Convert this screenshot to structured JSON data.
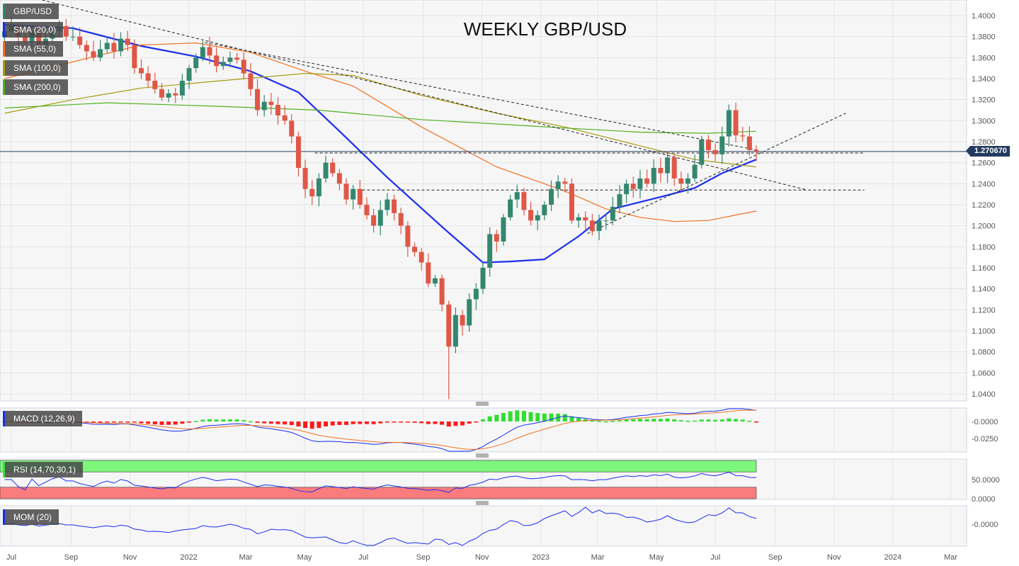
{
  "chart_data": {
    "type": "candlestick",
    "title": "WEEKLY GBP/USD",
    "symbol": "GBP/USD",
    "timeframe": "weekly",
    "first_week": "2021-07-05",
    "ylim": [
      1.03,
      1.41
    ],
    "last_price": "1.270670",
    "y_ticks": [
      "1.4000",
      "1.3800",
      "1.3600",
      "1.3400",
      "1.3200",
      "1.3000",
      "1.2800",
      "1.2600",
      "1.2400",
      "1.2200",
      "1.2000",
      "1.1800",
      "1.1600",
      "1.1400",
      "1.1200",
      "1.1000",
      "1.0800",
      "1.0600",
      "1.0400"
    ],
    "x_ticks": [
      {
        "label": "Jul",
        "date": "2021-07-01"
      },
      {
        "label": "Sep",
        "date": "2021-09-01"
      },
      {
        "label": "Nov",
        "date": "2021-11-01"
      },
      {
        "label": "2022",
        "date": "2022-01-01"
      },
      {
        "label": "Mar",
        "date": "2022-03-01"
      },
      {
        "label": "May",
        "date": "2022-05-01"
      },
      {
        "label": "Jul",
        "date": "2022-07-01"
      },
      {
        "label": "Sep",
        "date": "2022-09-01"
      },
      {
        "label": "Nov",
        "date": "2022-11-01"
      },
      {
        "label": "2023",
        "date": "2023-01-01"
      },
      {
        "label": "Mar",
        "date": "2023-03-01"
      },
      {
        "label": "May",
        "date": "2023-05-01"
      },
      {
        "label": "Jul",
        "date": "2023-07-01"
      },
      {
        "label": "Sep",
        "date": "2023-09-01"
      },
      {
        "label": "Nov",
        "date": "2023-11-01"
      },
      {
        "label": "2024",
        "date": "2024-01-01"
      },
      {
        "label": "Mar",
        "date": "2024-03-01"
      }
    ],
    "first_open": 1.38,
    "closes": [
      1.385,
      1.39,
      1.38,
      1.375,
      1.385,
      1.372,
      1.378,
      1.385,
      1.39,
      1.38,
      1.38,
      1.372,
      1.366,
      1.36,
      1.368,
      1.374,
      1.366,
      1.378,
      1.372,
      1.35,
      1.345,
      1.338,
      1.33,
      1.322,
      1.326,
      1.324,
      1.338,
      1.35,
      1.36,
      1.37,
      1.362,
      1.352,
      1.356,
      1.36,
      1.358,
      1.345,
      1.33,
      1.31,
      1.318,
      1.315,
      1.305,
      1.3,
      1.285,
      1.255,
      1.235,
      1.228,
      1.245,
      1.26,
      1.25,
      1.24,
      1.225,
      1.235,
      1.22,
      1.21,
      1.2,
      1.215,
      1.225,
      1.212,
      1.2,
      1.18,
      1.175,
      1.165,
      1.145,
      1.15,
      1.125,
      1.085,
      1.115,
      1.105,
      1.13,
      1.14,
      1.16,
      1.192,
      1.185,
      1.208,
      1.225,
      1.232,
      1.215,
      1.205,
      1.21,
      1.22,
      1.235,
      1.242,
      1.24,
      1.205,
      1.208,
      1.205,
      1.195,
      1.205,
      1.205,
      1.218,
      1.23,
      1.24,
      1.235,
      1.245,
      1.24,
      1.255,
      1.25,
      1.265,
      1.245,
      1.24,
      1.245,
      1.258,
      1.282,
      1.272,
      1.268,
      1.285,
      1.31,
      1.286,
      1.285,
      1.272,
      1.2707
    ],
    "low_overrides": {
      "65": 1.035
    },
    "sma": [
      {
        "name": "SMA (20,0)",
        "color": "#1a2ef0",
        "points": [
          [
            0,
            1.391
          ],
          [
            10,
            1.388
          ],
          [
            20,
            1.371
          ],
          [
            28,
            1.361
          ],
          [
            36,
            1.347
          ],
          [
            43,
            1.327
          ],
          [
            49,
            1.29
          ],
          [
            56,
            1.246
          ],
          [
            64,
            1.199
          ],
          [
            70,
            1.165
          ],
          [
            74,
            1.166
          ],
          [
            79,
            1.168
          ],
          [
            84,
            1.19
          ],
          [
            89,
            1.216
          ],
          [
            97,
            1.229
          ],
          [
            101,
            1.236
          ],
          [
            105,
            1.25
          ],
          [
            110,
            1.263
          ]
        ]
      },
      {
        "name": "SMA (55,0)",
        "color": "#f07020",
        "points": [
          [
            0,
            1.34
          ],
          [
            20,
            1.372
          ],
          [
            28,
            1.374
          ],
          [
            36,
            1.365
          ],
          [
            44,
            1.347
          ],
          [
            51,
            1.333
          ],
          [
            61,
            1.294
          ],
          [
            72,
            1.256
          ],
          [
            82,
            1.233
          ],
          [
            88,
            1.216
          ],
          [
            93,
            1.208
          ],
          [
            98,
            1.204
          ],
          [
            103,
            1.205
          ],
          [
            110,
            1.214
          ]
        ]
      },
      {
        "name": "SMA (100,0)",
        "color": "#a89a10",
        "points": [
          [
            0,
            1.307
          ],
          [
            10,
            1.32
          ],
          [
            20,
            1.331
          ],
          [
            30,
            1.337
          ],
          [
            44,
            1.345
          ],
          [
            51,
            1.343
          ],
          [
            61,
            1.324
          ],
          [
            72,
            1.307
          ],
          [
            82,
            1.294
          ],
          [
            93,
            1.276
          ],
          [
            101,
            1.263
          ],
          [
            110,
            1.256
          ]
        ]
      },
      {
        "name": "SMA (200,0)",
        "color": "#50b020",
        "points": [
          [
            0,
            1.312
          ],
          [
            15,
            1.317
          ],
          [
            30,
            1.314
          ],
          [
            46,
            1.31
          ],
          [
            61,
            1.301
          ],
          [
            82,
            1.293
          ],
          [
            93,
            1.289
          ],
          [
            103,
            1.288
          ],
          [
            110,
            1.29
          ]
        ]
      }
    ],
    "trendlines": [
      {
        "name": "downtrend-line-major",
        "points": [
          [
            5.5,
            1.4148
          ],
          [
            117.4,
            1.2341
          ]
        ]
      },
      {
        "name": "downtrend-line-minor",
        "points": [
          [
            29.3,
            1.3744
          ],
          [
            110.2,
            1.2719
          ]
        ]
      },
      {
        "name": "uptrend-line",
        "points": [
          [
            85.3,
            1.1925
          ],
          [
            123.1,
            1.3071
          ]
        ]
      },
      {
        "name": "resistance-line-1.2692",
        "points": [
          [
            45.4,
            1.2692
          ],
          [
            125.8,
            1.2692
          ]
        ]
      },
      {
        "name": "support-line-1.2340",
        "points": [
          [
            51.6,
            1.234
          ],
          [
            125.8,
            1.234
          ]
        ]
      }
    ],
    "indicators": {
      "macd": {
        "label": "MACD (12,26,9)",
        "ticks": [
          "-0.0000",
          "-0.0250"
        ]
      },
      "rsi": {
        "label": "RSI (14,70,30,1)",
        "ticks": [
          "50.0000",
          "0.0000"
        ],
        "overbought": 70,
        "oversold": 30
      },
      "mom": {
        "label": "MOM (20)",
        "ticks": [
          "-0.0000"
        ]
      }
    },
    "colors": {
      "up": "#34876f",
      "down": "#df5747",
      "grid": "#e4e4e4",
      "panel": "#f6f6f6"
    }
  }
}
